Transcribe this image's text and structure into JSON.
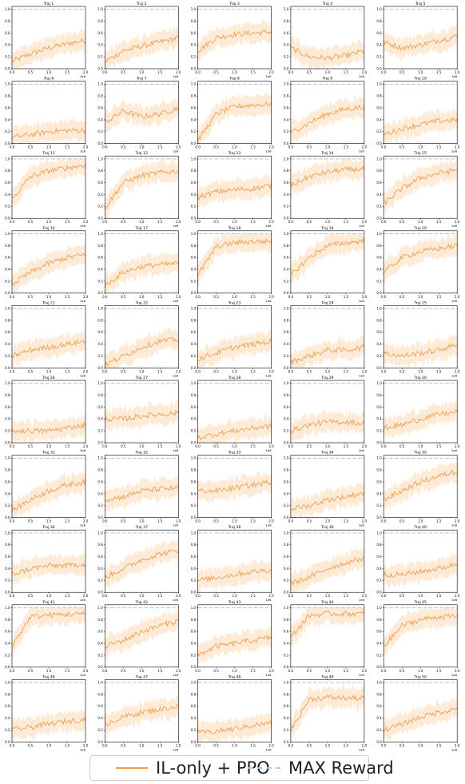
{
  "figure": {
    "subplot_titles": [
      "Traj 1",
      "Traj 2",
      "Traj 3",
      "Traj 4",
      "Traj 5",
      "Traj 6",
      "Traj 7",
      "Traj 8",
      "Traj 9",
      "Traj 10",
      "Traj 11",
      "Traj 12",
      "Traj 13",
      "Traj 14",
      "Traj 15",
      "Traj 16",
      "Traj 17",
      "Traj 18",
      "Traj 19",
      "Traj 20",
      "Traj 21",
      "Traj 22",
      "Traj 23",
      "Traj 24",
      "Traj 25",
      "Traj 26",
      "Traj 27",
      "Traj 28",
      "Traj 29",
      "Traj 30",
      "Traj 31",
      "Traj 32",
      "Traj 33",
      "Traj 34",
      "Traj 35",
      "Traj 36",
      "Traj 37",
      "Traj 38",
      "Traj 39",
      "Traj 40",
      "Traj 41",
      "Traj 42",
      "Traj 43",
      "Traj 44",
      "Traj 45",
      "Traj 46",
      "Traj 47",
      "Traj 48",
      "Traj 49",
      "Traj 50"
    ],
    "x_tick_labels": [
      "0.0",
      "0.5",
      "1.0",
      "1.5",
      "2.0"
    ],
    "y_tick_labels": [
      "0.0",
      "0.2",
      "0.4",
      "0.6",
      "0.8",
      "1.0"
    ],
    "x_offset_label": "1e6"
  },
  "legend": {
    "items": [
      {
        "label": "IL-only + PPO"
      },
      {
        "label": "MAX Reward"
      }
    ]
  },
  "colors": {
    "series": "#f0a04b",
    "band": "#fdebd8",
    "max": "#a9c8ec",
    "axis": "#000000"
  },
  "chart_data": {
    "type": "line",
    "grid": false,
    "xlim": [
      0,
      2000000
    ],
    "ylim": [
      0,
      1.05
    ],
    "series_names": [
      "IL-only + PPO",
      "MAX Reward"
    ],
    "max_reward": 1.0,
    "trajectories": [
      [
        0.12,
        0.25,
        0.35,
        0.42,
        0.48
      ],
      [
        0.12,
        0.3,
        0.38,
        0.45,
        0.52
      ],
      [
        0.3,
        0.52,
        0.58,
        0.6,
        0.62
      ],
      [
        0.35,
        0.2,
        0.18,
        0.22,
        0.3
      ],
      [
        0.45,
        0.35,
        0.4,
        0.48,
        0.55
      ],
      [
        0.1,
        0.15,
        0.2,
        0.22,
        0.22
      ],
      [
        0.35,
        0.55,
        0.45,
        0.5,
        0.6
      ],
      [
        0.05,
        0.5,
        0.62,
        0.65,
        0.66
      ],
      [
        0.18,
        0.35,
        0.5,
        0.58,
        0.62
      ],
      [
        0.15,
        0.25,
        0.32,
        0.38,
        0.4
      ],
      [
        0.32,
        0.7,
        0.8,
        0.85,
        0.9
      ],
      [
        0.18,
        0.6,
        0.72,
        0.77,
        0.8
      ],
      [
        0.35,
        0.45,
        0.48,
        0.5,
        0.55
      ],
      [
        0.55,
        0.7,
        0.78,
        0.82,
        0.83
      ],
      [
        0.25,
        0.5,
        0.68,
        0.76,
        0.82
      ],
      [
        0.15,
        0.35,
        0.5,
        0.6,
        0.65
      ],
      [
        0.12,
        0.35,
        0.45,
        0.48,
        0.5
      ],
      [
        0.3,
        0.78,
        0.85,
        0.87,
        0.87
      ],
      [
        0.3,
        0.6,
        0.8,
        0.85,
        0.88
      ],
      [
        0.35,
        0.6,
        0.7,
        0.75,
        0.8
      ],
      [
        0.2,
        0.3,
        0.35,
        0.4,
        0.45
      ],
      [
        0.05,
        0.2,
        0.35,
        0.45,
        0.48
      ],
      [
        0.15,
        0.25,
        0.35,
        0.4,
        0.45
      ],
      [
        0.1,
        0.2,
        0.3,
        0.3,
        0.35
      ],
      [
        0.25,
        0.2,
        0.25,
        0.3,
        0.4
      ],
      [
        0.2,
        0.2,
        0.2,
        0.25,
        0.3
      ],
      [
        0.4,
        0.4,
        0.45,
        0.48,
        0.5
      ],
      [
        0.08,
        0.15,
        0.2,
        0.25,
        0.28
      ],
      [
        0.2,
        0.3,
        0.35,
        0.35,
        0.32
      ],
      [
        0.25,
        0.3,
        0.4,
        0.48,
        0.52
      ],
      [
        0.12,
        0.3,
        0.45,
        0.55,
        0.6
      ],
      [
        0.3,
        0.35,
        0.45,
        0.48,
        0.5
      ],
      [
        0.45,
        0.45,
        0.5,
        0.55,
        0.6
      ],
      [
        0.15,
        0.2,
        0.3,
        0.35,
        0.42
      ],
      [
        0.3,
        0.45,
        0.6,
        0.7,
        0.78
      ],
      [
        0.3,
        0.4,
        0.45,
        0.45,
        0.48
      ],
      [
        0.25,
        0.4,
        0.55,
        0.65,
        0.7
      ],
      [
        0.2,
        0.25,
        0.3,
        0.35,
        0.38
      ],
      [
        0.15,
        0.25,
        0.4,
        0.5,
        0.58
      ],
      [
        0.3,
        0.3,
        0.35,
        0.4,
        0.48
      ],
      [
        0.35,
        0.85,
        0.88,
        0.89,
        0.9
      ],
      [
        0.35,
        0.45,
        0.6,
        0.7,
        0.78
      ],
      [
        0.2,
        0.35,
        0.4,
        0.45,
        0.5
      ],
      [
        0.5,
        0.87,
        0.9,
        0.9,
        0.9
      ],
      [
        0.35,
        0.7,
        0.8,
        0.85,
        0.85
      ],
      [
        0.2,
        0.25,
        0.3,
        0.35,
        0.38
      ],
      [
        0.3,
        0.42,
        0.5,
        0.55,
        0.6
      ],
      [
        0.15,
        0.18,
        0.22,
        0.28,
        0.32
      ],
      [
        0.2,
        0.72,
        0.75,
        0.74,
        0.74
      ],
      [
        0.2,
        0.3,
        0.42,
        0.5,
        0.56
      ]
    ]
  }
}
